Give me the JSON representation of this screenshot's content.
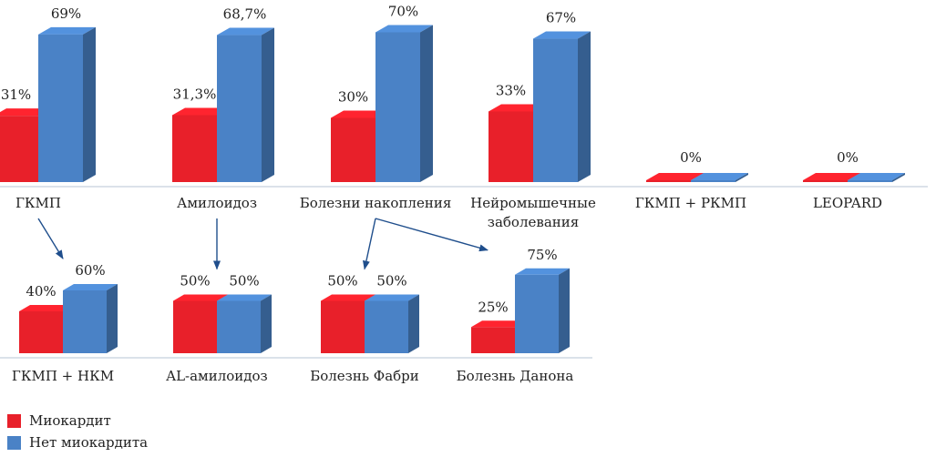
{
  "colors": {
    "red": "#e8202a",
    "blue": "#4a82c6",
    "arrow": "#1f4e8c",
    "baseline": "#cfd8e3"
  },
  "legend": {
    "myocarditis": "Миокардит",
    "no_myocarditis": "Нет миокардита"
  },
  "chart_data": [
    {
      "type": "bar",
      "title": "",
      "series": [
        {
          "name": "Миокардит",
          "values": [
            31,
            31.3,
            30,
            33,
            0,
            0
          ]
        },
        {
          "name": "Нет миокардита",
          "values": [
            69,
            68.7,
            70,
            67,
            0,
            0
          ]
        }
      ],
      "categories": [
        "ГКМП",
        "Амилоидоз",
        "Болезни накопления",
        "Нейромышечные заболевания",
        "ГКМП + РКМП",
        "LEOPARD"
      ],
      "category_lines": [
        [
          "ГКМП"
        ],
        [
          "Амилоидоз"
        ],
        [
          "Болезни накопления"
        ],
        [
          "Нейромышечные",
          "заболевания"
        ],
        [
          "ГКМП + РКМП"
        ],
        [
          "LEOPARD"
        ]
      ],
      "labels": [
        [
          "31%",
          "69%"
        ],
        [
          "31,3%",
          "68,7%"
        ],
        [
          "30%",
          "70%"
        ],
        [
          "33%",
          "67%"
        ],
        [
          "0%"
        ],
        [
          "0%"
        ]
      ]
    },
    {
      "type": "bar",
      "title": "",
      "series": [
        {
          "name": "Миокардит",
          "values": [
            40,
            50,
            50,
            25
          ]
        },
        {
          "name": "Нет миокардита",
          "values": [
            60,
            50,
            50,
            75
          ]
        }
      ],
      "categories": [
        "ГКМП + НКМ",
        "AL-амилоидоз",
        "Болезнь Фабри",
        "Болезнь Данона"
      ],
      "category_lines": [
        [
          "ГКМП + НКМ"
        ],
        [
          "AL-амилоидоз"
        ],
        [
          "Болезнь Фабри"
        ],
        [
          "Болезнь Данона"
        ]
      ],
      "labels": [
        [
          "40%",
          "60%"
        ],
        [
          "50%",
          "50%"
        ],
        [
          "50%",
          "50%"
        ],
        [
          "25%",
          "75%"
        ]
      ]
    }
  ],
  "links": [
    {
      "from": "ГКМП",
      "to": "ГКМП + НКМ"
    },
    {
      "from": "Амилоидоз",
      "to": "AL-амилоидоз"
    },
    {
      "from": "Болезни накопления",
      "to": "Болезнь Фабри"
    },
    {
      "from": "Болезни накопления",
      "to": "Болезнь Данона"
    }
  ]
}
